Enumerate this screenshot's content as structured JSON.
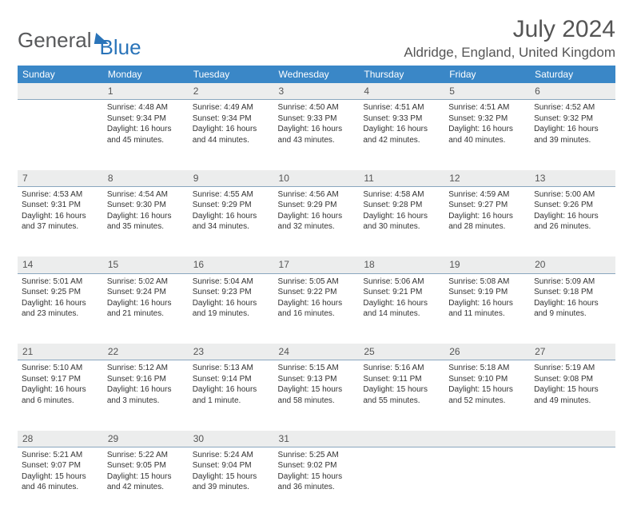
{
  "logo": {
    "general": "General",
    "blue": "Blue"
  },
  "header": {
    "title": "July 2024",
    "location": "Aldridge, England, United Kingdom"
  },
  "weekdays": [
    "Sunday",
    "Monday",
    "Tuesday",
    "Wednesday",
    "Thursday",
    "Friday",
    "Saturday"
  ],
  "colors": {
    "header_bg": "#3a87c7",
    "daynum_bg": "#eceded",
    "accent": "#2a74b9"
  },
  "weeks": [
    {
      "nums": [
        "",
        "1",
        "2",
        "3",
        "4",
        "5",
        "6"
      ],
      "cells": [
        null,
        {
          "sr": "Sunrise: 4:48 AM",
          "ss": "Sunset: 9:34 PM",
          "dl1": "Daylight: 16 hours",
          "dl2": "and 45 minutes."
        },
        {
          "sr": "Sunrise: 4:49 AM",
          "ss": "Sunset: 9:34 PM",
          "dl1": "Daylight: 16 hours",
          "dl2": "and 44 minutes."
        },
        {
          "sr": "Sunrise: 4:50 AM",
          "ss": "Sunset: 9:33 PM",
          "dl1": "Daylight: 16 hours",
          "dl2": "and 43 minutes."
        },
        {
          "sr": "Sunrise: 4:51 AM",
          "ss": "Sunset: 9:33 PM",
          "dl1": "Daylight: 16 hours",
          "dl2": "and 42 minutes."
        },
        {
          "sr": "Sunrise: 4:51 AM",
          "ss": "Sunset: 9:32 PM",
          "dl1": "Daylight: 16 hours",
          "dl2": "and 40 minutes."
        },
        {
          "sr": "Sunrise: 4:52 AM",
          "ss": "Sunset: 9:32 PM",
          "dl1": "Daylight: 16 hours",
          "dl2": "and 39 minutes."
        }
      ]
    },
    {
      "nums": [
        "7",
        "8",
        "9",
        "10",
        "11",
        "12",
        "13"
      ],
      "cells": [
        {
          "sr": "Sunrise: 4:53 AM",
          "ss": "Sunset: 9:31 PM",
          "dl1": "Daylight: 16 hours",
          "dl2": "and 37 minutes."
        },
        {
          "sr": "Sunrise: 4:54 AM",
          "ss": "Sunset: 9:30 PM",
          "dl1": "Daylight: 16 hours",
          "dl2": "and 35 minutes."
        },
        {
          "sr": "Sunrise: 4:55 AM",
          "ss": "Sunset: 9:29 PM",
          "dl1": "Daylight: 16 hours",
          "dl2": "and 34 minutes."
        },
        {
          "sr": "Sunrise: 4:56 AM",
          "ss": "Sunset: 9:29 PM",
          "dl1": "Daylight: 16 hours",
          "dl2": "and 32 minutes."
        },
        {
          "sr": "Sunrise: 4:58 AM",
          "ss": "Sunset: 9:28 PM",
          "dl1": "Daylight: 16 hours",
          "dl2": "and 30 minutes."
        },
        {
          "sr": "Sunrise: 4:59 AM",
          "ss": "Sunset: 9:27 PM",
          "dl1": "Daylight: 16 hours",
          "dl2": "and 28 minutes."
        },
        {
          "sr": "Sunrise: 5:00 AM",
          "ss": "Sunset: 9:26 PM",
          "dl1": "Daylight: 16 hours",
          "dl2": "and 26 minutes."
        }
      ]
    },
    {
      "nums": [
        "14",
        "15",
        "16",
        "17",
        "18",
        "19",
        "20"
      ],
      "cells": [
        {
          "sr": "Sunrise: 5:01 AM",
          "ss": "Sunset: 9:25 PM",
          "dl1": "Daylight: 16 hours",
          "dl2": "and 23 minutes."
        },
        {
          "sr": "Sunrise: 5:02 AM",
          "ss": "Sunset: 9:24 PM",
          "dl1": "Daylight: 16 hours",
          "dl2": "and 21 minutes."
        },
        {
          "sr": "Sunrise: 5:04 AM",
          "ss": "Sunset: 9:23 PM",
          "dl1": "Daylight: 16 hours",
          "dl2": "and 19 minutes."
        },
        {
          "sr": "Sunrise: 5:05 AM",
          "ss": "Sunset: 9:22 PM",
          "dl1": "Daylight: 16 hours",
          "dl2": "and 16 minutes."
        },
        {
          "sr": "Sunrise: 5:06 AM",
          "ss": "Sunset: 9:21 PM",
          "dl1": "Daylight: 16 hours",
          "dl2": "and 14 minutes."
        },
        {
          "sr": "Sunrise: 5:08 AM",
          "ss": "Sunset: 9:19 PM",
          "dl1": "Daylight: 16 hours",
          "dl2": "and 11 minutes."
        },
        {
          "sr": "Sunrise: 5:09 AM",
          "ss": "Sunset: 9:18 PM",
          "dl1": "Daylight: 16 hours",
          "dl2": "and 9 minutes."
        }
      ]
    },
    {
      "nums": [
        "21",
        "22",
        "23",
        "24",
        "25",
        "26",
        "27"
      ],
      "cells": [
        {
          "sr": "Sunrise: 5:10 AM",
          "ss": "Sunset: 9:17 PM",
          "dl1": "Daylight: 16 hours",
          "dl2": "and 6 minutes."
        },
        {
          "sr": "Sunrise: 5:12 AM",
          "ss": "Sunset: 9:16 PM",
          "dl1": "Daylight: 16 hours",
          "dl2": "and 3 minutes."
        },
        {
          "sr": "Sunrise: 5:13 AM",
          "ss": "Sunset: 9:14 PM",
          "dl1": "Daylight: 16 hours",
          "dl2": "and 1 minute."
        },
        {
          "sr": "Sunrise: 5:15 AM",
          "ss": "Sunset: 9:13 PM",
          "dl1": "Daylight: 15 hours",
          "dl2": "and 58 minutes."
        },
        {
          "sr": "Sunrise: 5:16 AM",
          "ss": "Sunset: 9:11 PM",
          "dl1": "Daylight: 15 hours",
          "dl2": "and 55 minutes."
        },
        {
          "sr": "Sunrise: 5:18 AM",
          "ss": "Sunset: 9:10 PM",
          "dl1": "Daylight: 15 hours",
          "dl2": "and 52 minutes."
        },
        {
          "sr": "Sunrise: 5:19 AM",
          "ss": "Sunset: 9:08 PM",
          "dl1": "Daylight: 15 hours",
          "dl2": "and 49 minutes."
        }
      ]
    },
    {
      "nums": [
        "28",
        "29",
        "30",
        "31",
        "",
        "",
        ""
      ],
      "cells": [
        {
          "sr": "Sunrise: 5:21 AM",
          "ss": "Sunset: 9:07 PM",
          "dl1": "Daylight: 15 hours",
          "dl2": "and 46 minutes."
        },
        {
          "sr": "Sunrise: 5:22 AM",
          "ss": "Sunset: 9:05 PM",
          "dl1": "Daylight: 15 hours",
          "dl2": "and 42 minutes."
        },
        {
          "sr": "Sunrise: 5:24 AM",
          "ss": "Sunset: 9:04 PM",
          "dl1": "Daylight: 15 hours",
          "dl2": "and 39 minutes."
        },
        {
          "sr": "Sunrise: 5:25 AM",
          "ss": "Sunset: 9:02 PM",
          "dl1": "Daylight: 15 hours",
          "dl2": "and 36 minutes."
        },
        null,
        null,
        null
      ]
    }
  ]
}
